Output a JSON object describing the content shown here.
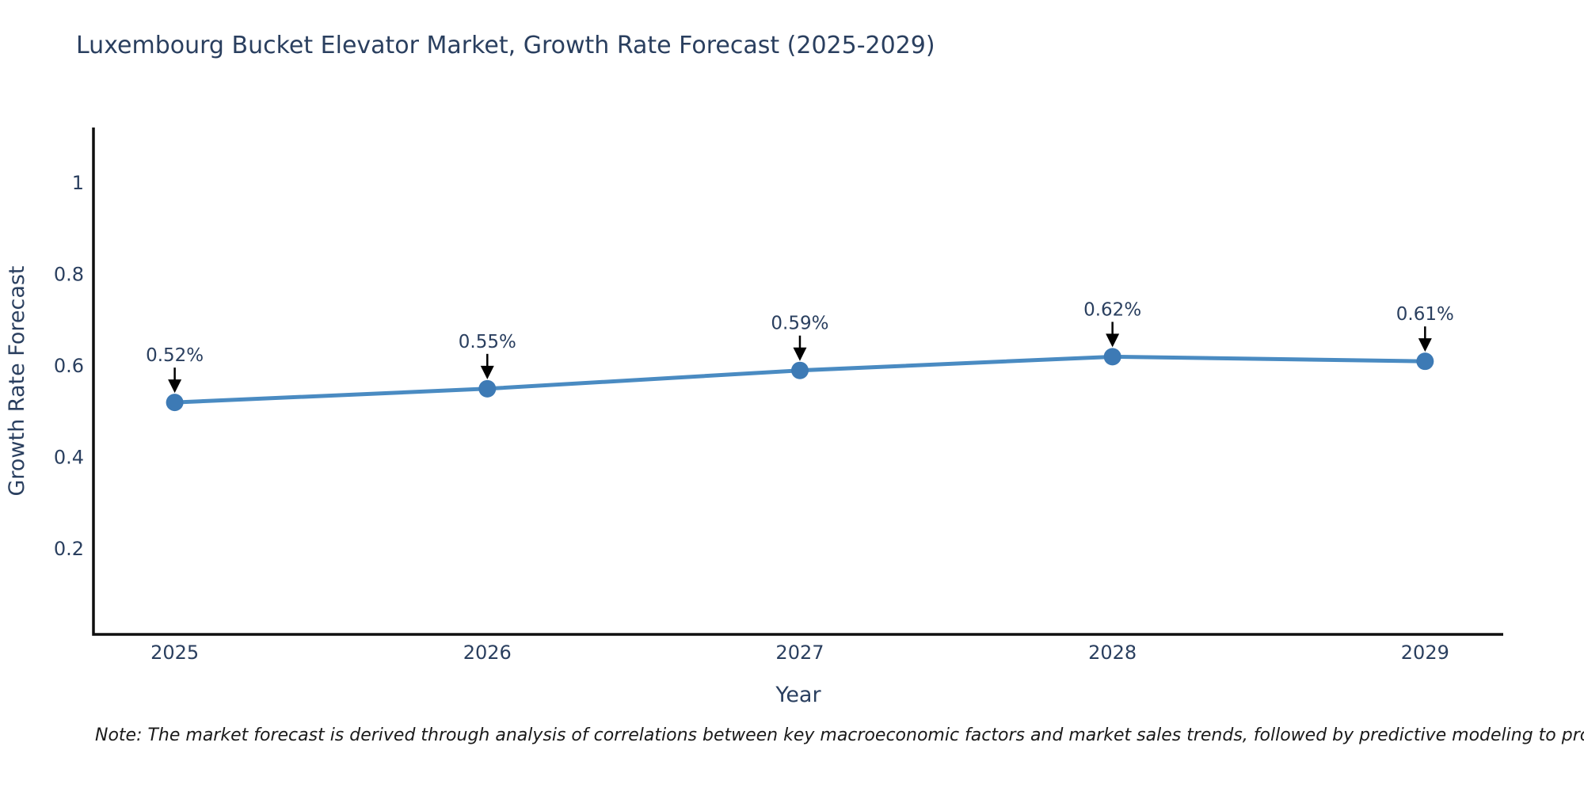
{
  "title": "Luxembourg Bucket Elevator Market, Growth Rate Forecast (2025-2029)",
  "note": "Note: The market forecast is derived through analysis of correlations between key macroeconomic factors and market sales trends, followed by predictive modeling to project future sales",
  "chart_data": {
    "type": "line",
    "x": [
      2025,
      2026,
      2027,
      2028,
      2029
    ],
    "values": [
      0.52,
      0.55,
      0.59,
      0.62,
      0.61
    ],
    "point_labels": [
      "0.52%",
      "0.55%",
      "0.59%",
      "0.62%",
      "0.61%"
    ],
    "xlabel": "Year",
    "ylabel": "Growth Rate Forecast",
    "yticks": [
      0.2,
      0.4,
      0.6,
      0.8,
      1
    ],
    "xticks": [
      2025,
      2026,
      2027,
      2028,
      2029
    ],
    "ylim": [
      0.013,
      1.121
    ],
    "xlim": [
      2024.74,
      2029.25
    ],
    "grid": false,
    "legend_position": "none",
    "colors": {
      "line": "#4a8bc2",
      "marker": "#3d7ab5",
      "axis": "#0e0e0e",
      "text": "#2a3f5f",
      "arrow": "#000000"
    }
  }
}
